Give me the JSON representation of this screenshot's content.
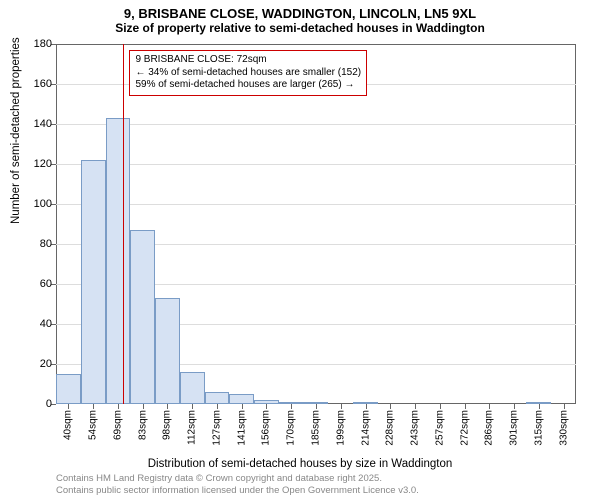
{
  "title_main": "9, BRISBANE CLOSE, WADDINGTON, LINCOLN, LN5 9XL",
  "title_sub": "Size of property relative to semi-detached houses in Waddington",
  "chart": {
    "type": "histogram",
    "ylim": [
      0,
      180
    ],
    "ytick_step": 20,
    "yticks": [
      0,
      20,
      40,
      60,
      80,
      100,
      120,
      140,
      160,
      180
    ],
    "ylabel": "Number of semi-detached properties",
    "xlabel": "Distribution of semi-detached houses by size in Waddington",
    "x_start": 32.5,
    "x_step": 14.5,
    "x_ticks": [
      "40sqm",
      "54sqm",
      "69sqm",
      "83sqm",
      "98sqm",
      "112sqm",
      "127sqm",
      "141sqm",
      "156sqm",
      "170sqm",
      "185sqm",
      "199sqm",
      "214sqm",
      "228sqm",
      "243sqm",
      "257sqm",
      "272sqm",
      "286sqm",
      "301sqm",
      "315sqm",
      "330sqm"
    ],
    "bars": [
      15,
      122,
      143,
      87,
      53,
      16,
      6,
      5,
      2,
      1,
      1,
      0,
      1,
      0,
      0,
      0,
      0,
      0,
      0,
      1,
      0
    ],
    "bar_fill": "#d6e2f3",
    "bar_stroke": "#7a9cc6",
    "grid_color": "#dddddd",
    "border_color": "#666666",
    "background_color": "#ffffff",
    "marker": {
      "value": 72,
      "color": "#cc0000"
    },
    "annotation": {
      "line1": "9 BRISBANE CLOSE: 72sqm",
      "line2": "← 34% of semi-detached houses are smaller (152)",
      "line3": "59% of semi-detached houses are larger (265) →",
      "border_color": "#cc0000"
    },
    "title_fontsize": 13,
    "label_fontsize": 11.5,
    "tick_fontsize": 11,
    "xtick_fontsize": 10,
    "annotation_fontsize": 10
  },
  "footer": {
    "line1": "Contains HM Land Registry data © Crown copyright and database right 2025.",
    "line2": "Contains public sector information licensed under the Open Government Licence v3.0."
  }
}
